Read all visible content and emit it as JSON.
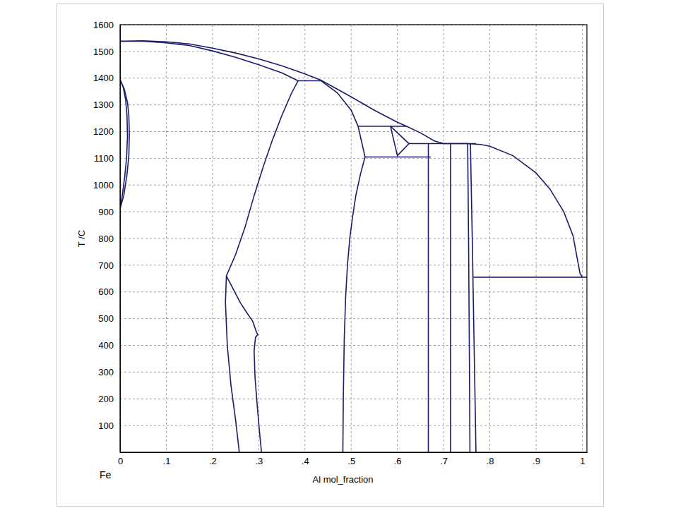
{
  "chart_data": {
    "type": "line",
    "x_label": "Al mol_fraction",
    "y_label": "T /C",
    "annotations": [
      "Fe"
    ],
    "grid": true,
    "line_style": "solid",
    "xlim": [
      0,
      1.01
    ],
    "ylim": [
      0,
      1600
    ],
    "xticks": [
      0,
      {
        "value": 0.1,
        "label": ".1"
      },
      {
        "value": 0.2,
        "label": ".2"
      },
      {
        "value": 0.3,
        "label": ".3"
      },
      {
        "value": 0.4,
        "label": ".4"
      },
      {
        "value": 0.5,
        "label": ".5"
      },
      {
        "value": 0.6,
        "label": ".6"
      },
      {
        "value": 0.7,
        "label": ".7"
      },
      {
        "value": 0.8,
        "label": ".8"
      },
      {
        "value": 0.9,
        "label": ".9"
      },
      1
    ],
    "yticks": [
      100,
      200,
      300,
      400,
      500,
      600,
      700,
      800,
      900,
      1000,
      1100,
      1200,
      1300,
      1400,
      1500,
      1600
    ],
    "series": [
      {
        "color": "#1c1c6b",
        "x": [
          0,
          0.05,
          0.1,
          0.15,
          0.2,
          0.25,
          0.3,
          0.35,
          0.4,
          0.435,
          0.5,
          0.55,
          0.6,
          0.62,
          0.65,
          0.68,
          0.7,
          0.75
        ],
        "values": [
          1538,
          1540,
          1536,
          1528,
          1512,
          1494,
          1472,
          1446,
          1416,
          1392,
          1330,
          1280,
          1235,
          1220,
          1195,
          1165,
          1155,
          1155
        ]
      },
      {
        "color": "#1c1c6b",
        "x": [
          0.75,
          0.78,
          0.8,
          0.85,
          0.9,
          0.93,
          0.96,
          0.98,
          0.995,
          1.0
        ],
        "values": [
          1155,
          1152,
          1145,
          1110,
          1045,
          985,
          900,
          810,
          670,
          655
        ]
      },
      {
        "color": "#1c1c6b",
        "x": [
          0,
          0.05,
          0.1,
          0.15,
          0.2,
          0.25,
          0.3,
          0.35,
          0.385
        ],
        "values": [
          1538,
          1538,
          1532,
          1522,
          1502,
          1478,
          1450,
          1420,
          1390
        ]
      },
      {
        "color": "#1c1c6b",
        "x": [
          0.385,
          0.435
        ],
        "values": [
          1390,
          1390
        ]
      },
      {
        "color": "#1c1c6b",
        "x": [
          0.435,
          0.47,
          0.5,
          0.515
        ],
        "values": [
          1390,
          1345,
          1280,
          1220
        ]
      },
      {
        "color": "#1c1c6b",
        "x": [
          0.515,
          0.62
        ],
        "values": [
          1220,
          1220
        ]
      },
      {
        "color": "#1c1c6b",
        "x": [
          0.585,
          0.6,
          0.625,
          0.585
        ],
        "values": [
          1220,
          1110,
          1155,
          1220
        ]
      },
      {
        "color": "#1c1c6b",
        "x": [
          0.515,
          0.53
        ],
        "values": [
          1220,
          1105
        ]
      },
      {
        "color": "#1c1c6b",
        "x": [
          0.53,
          0.672
        ],
        "values": [
          1105,
          1105
        ]
      },
      {
        "color": "#1c1c6b",
        "x": [
          0.625,
          0.77
        ],
        "values": [
          1155,
          1155
        ]
      },
      {
        "color": "#1c1c6b",
        "x": [
          0.667,
          0.667
        ],
        "values": [
          0,
          1155
        ]
      },
      {
        "color": "#1c1c6b",
        "x": [
          0.715,
          0.715
        ],
        "values": [
          0,
          1155
        ]
      },
      {
        "color": "#1c1c6b",
        "x": [
          0.752,
          0.754,
          0.756,
          0.757
        ],
        "values": [
          1155,
          800,
          300,
          0
        ]
      },
      {
        "color": "#1c1c6b",
        "x": [
          0.758,
          0.762,
          0.766,
          0.77
        ],
        "values": [
          1155,
          800,
          400,
          0
        ]
      },
      {
        "color": "#1c1c6b",
        "x": [
          0.763,
          1.01
        ],
        "values": [
          655,
          655
        ]
      },
      {
        "color": "#1c1c6b",
        "x": [
          0,
          0.004,
          0.01,
          0.014,
          0.016,
          0.015,
          0.012,
          0.007,
          0
        ],
        "values": [
          912,
          950,
          1030,
          1100,
          1180,
          1260,
          1320,
          1365,
          1394
        ]
      },
      {
        "color": "#1c1c6b",
        "x": [
          0,
          0.008,
          0.015,
          0.019,
          0.02,
          0.019,
          0.016,
          0.009,
          0
        ],
        "values": [
          912,
          960,
          1040,
          1110,
          1190,
          1260,
          1310,
          1360,
          1394
        ]
      },
      {
        "color": "#1c1c6b",
        "x": [
          0.385,
          0.37,
          0.35,
          0.33,
          0.31,
          0.29,
          0.27,
          0.25,
          0.235,
          0.23,
          0.228,
          0.232,
          0.24,
          0.25,
          0.258
        ],
        "values": [
          1390,
          1340,
          1260,
          1170,
          1070,
          960,
          840,
          740,
          680,
          660,
          560,
          400,
          250,
          120,
          0
        ]
      },
      {
        "color": "#1c1c6b",
        "x": [
          0.23,
          0.245,
          0.26,
          0.275,
          0.287,
          0.295,
          0.298,
          0.293,
          0.29,
          0.292,
          0.297,
          0.302,
          0.306
        ],
        "values": [
          660,
          610,
          560,
          520,
          490,
          450,
          440,
          430,
          380,
          280,
          170,
          70,
          0
        ]
      },
      {
        "color": "#1c1c6b",
        "x": [
          0.53,
          0.52,
          0.51,
          0.503,
          0.497,
          0.492,
          0.488,
          0.485,
          0.483,
          0.482
        ],
        "values": [
          1105,
          1040,
          960,
          880,
          800,
          700,
          580,
          420,
          200,
          0
        ]
      }
    ]
  }
}
